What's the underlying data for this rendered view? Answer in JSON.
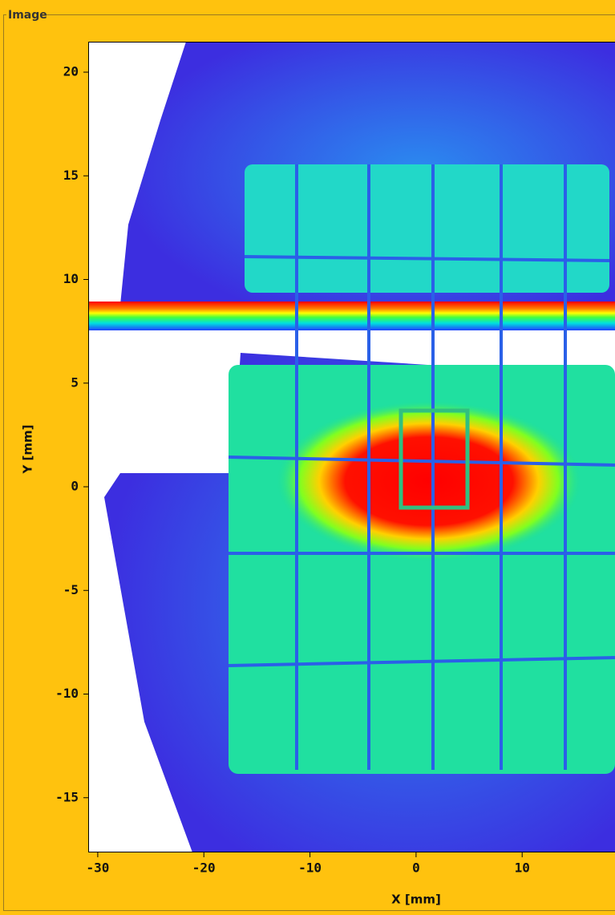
{
  "panel": {
    "title": "Image"
  },
  "chart_data": {
    "type": "heatmap",
    "xlabel": "X [mm]",
    "ylabel": "Y [mm]",
    "xlim": [
      -30.9,
      18.75
    ],
    "ylim": [
      -17.64,
      21.47
    ],
    "xticks": [
      -30,
      -20,
      -10,
      0,
      10
    ],
    "yticks": [
      -15,
      -10,
      -5,
      0,
      5,
      10,
      15,
      20
    ]
  }
}
